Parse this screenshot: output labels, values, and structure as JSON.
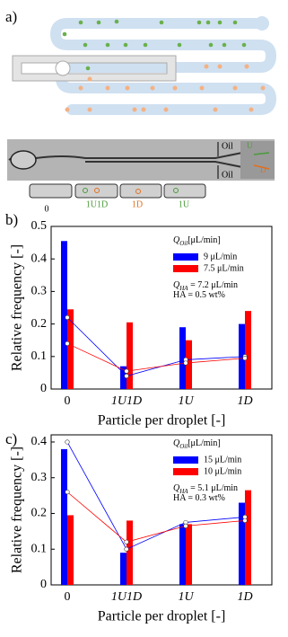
{
  "panel_labels": [
    "a)",
    "b)",
    "c)"
  ],
  "schematic": {
    "oil_labels": [
      "Oil",
      "Oil"
    ],
    "flow_labels": [
      "U",
      "D"
    ],
    "droplet_labels": [
      "0",
      "1U1D",
      "1D",
      "1U"
    ]
  },
  "chart_data": [
    {
      "type": "bar",
      "ylabel": "Relative frequency [-]",
      "xlabel": "Particle per droplet [-]",
      "categories": [
        "0",
        "1U1D",
        "1U",
        "1D"
      ],
      "legend_title": {
        "main": "Q",
        "sub": "Oil",
        "rest": "[μL/min]"
      },
      "series": [
        {
          "name": "9 μL/min",
          "color": "#0000ff",
          "values": [
            0.455,
            0.07,
            0.19,
            0.2
          ]
        },
        {
          "name": "7.5 μL/min",
          "color": "#ff0000",
          "values": [
            0.245,
            0.205,
            0.15,
            0.24
          ]
        }
      ],
      "model_series": [
        {
          "color": "#0000ff",
          "values": [
            0.22,
            0.04,
            0.09,
            0.1
          ]
        },
        {
          "color": "#ff0000",
          "values": [
            0.14,
            0.055,
            0.08,
            0.095
          ]
        }
      ],
      "annotations": [
        {
          "main": "Q",
          "sub": "HA",
          "rest": " = 7.2 μL/min"
        },
        {
          "main": "HA = 0.5 wt%"
        }
      ],
      "ylim": [
        0,
        0.5
      ],
      "yticks": [
        0,
        0.1,
        0.2,
        0.3,
        0.4,
        0.5
      ]
    },
    {
      "type": "bar",
      "ylabel": "Relative frequency [-]",
      "xlabel": "Particle per droplet [-]",
      "categories": [
        "0",
        "1U1D",
        "1U",
        "1D"
      ],
      "legend_title": {
        "main": "Q",
        "sub": "Oil",
        "rest": "[μL/min]"
      },
      "series": [
        {
          "name": "15 μL/min",
          "color": "#0000ff",
          "values": [
            0.38,
            0.09,
            0.17,
            0.23
          ]
        },
        {
          "name": "10 μL/min",
          "color": "#ff0000",
          "values": [
            0.195,
            0.18,
            0.17,
            0.265
          ]
        }
      ],
      "model_series": [
        {
          "color": "#0000ff",
          "values": [
            0.4,
            0.1,
            0.175,
            0.19
          ]
        },
        {
          "color": "#ff0000",
          "values": [
            0.26,
            0.12,
            0.165,
            0.18
          ]
        }
      ],
      "annotations": [
        {
          "main": "Q",
          "sub": "HA",
          "rest": " = 5.1 μL/min"
        },
        {
          "main": "HA = 0.3 wt%"
        }
      ],
      "ylim": [
        0,
        0.42
      ],
      "yticks": [
        0,
        0.1,
        0.2,
        0.3,
        0.4
      ]
    }
  ]
}
